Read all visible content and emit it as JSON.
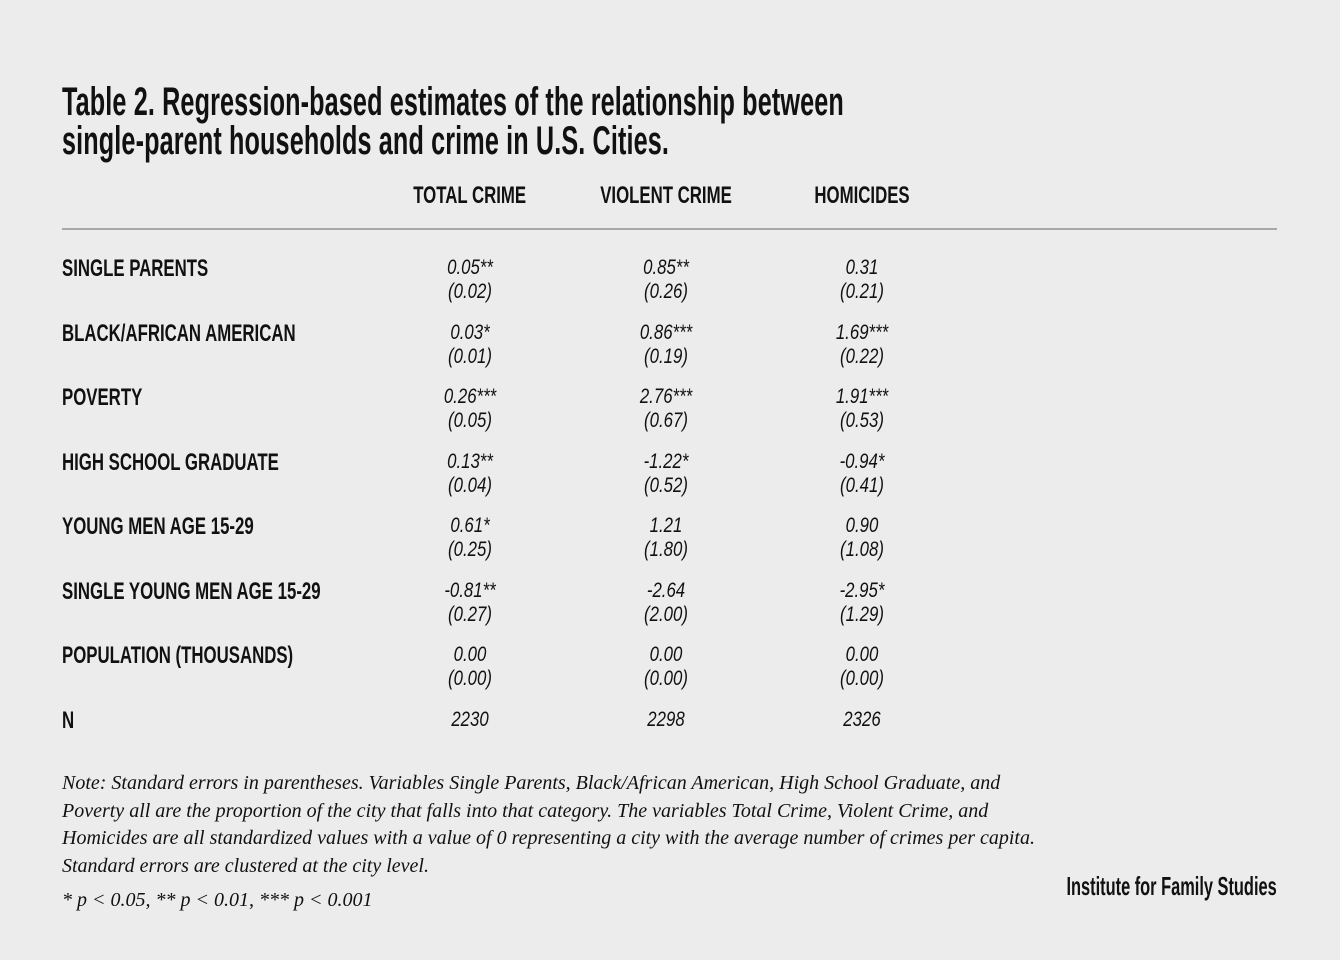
{
  "chart_data": {
    "type": "table",
    "title": "Table 2. Regression-based estimates of the relationship between single-parent households and crime in U.S. Cities.",
    "title_lines": [
      "Table 2. Regression-based estimates of the relationship between",
      "single-parent households and crime in U.S. Cities."
    ],
    "columns": [
      "TOTAL CRIME",
      "VIOLENT CRIME",
      "HOMICIDES"
    ],
    "rows": [
      {
        "label": "SINGLE PARENTS",
        "estimates": [
          "0.05**",
          "0.85**",
          "0.31"
        ],
        "standard_errors": [
          "(0.02)",
          "(0.26)",
          "(0.21)"
        ]
      },
      {
        "label": "BLACK/AFRICAN AMERICAN",
        "estimates": [
          "0.03*",
          "0.86***",
          "1.69***"
        ],
        "standard_errors": [
          "(0.01)",
          "(0.19)",
          "(0.22)"
        ]
      },
      {
        "label": "POVERTY",
        "estimates": [
          "0.26***",
          "2.76***",
          "1.91***"
        ],
        "standard_errors": [
          "(0.05)",
          "(0.67)",
          "(0.53)"
        ]
      },
      {
        "label": "HIGH SCHOOL GRADUATE",
        "estimates": [
          "0.13**",
          "-1.22*",
          "-0.94*"
        ],
        "standard_errors": [
          "(0.04)",
          "(0.52)",
          "(0.41)"
        ]
      },
      {
        "label": "YOUNG MEN AGE 15-29",
        "estimates": [
          "0.61*",
          "1.21",
          "0.90"
        ],
        "standard_errors": [
          "(0.25)",
          "(1.80)",
          "(1.08)"
        ]
      },
      {
        "label": "SINGLE YOUNG MEN AGE 15-29",
        "estimates": [
          "-0.81**",
          "-2.64",
          "-2.95*"
        ],
        "standard_errors": [
          "(0.27)",
          "(2.00)",
          "(1.29)"
        ]
      },
      {
        "label": "POPULATION (THOUSANDS)",
        "estimates": [
          "0.00",
          "0.00",
          "0.00"
        ],
        "standard_errors": [
          "(0.00)",
          "(0.00)",
          "(0.00)"
        ]
      },
      {
        "label": "N",
        "estimates": [
          "2230",
          "2298",
          "2326"
        ],
        "standard_errors": null
      }
    ],
    "note": "Note: Standard errors in parentheses. Variables Single Parents, Black/African American, High School Graduate, and Poverty all are the proportion of the city that falls into that category. The variables Total Crime, Violent Crime, and Homicides are all standardized values with a value of 0 representing a city with the average number of crimes per capita. Standard errors are clustered at the city level.",
    "significance_legend": "* p < 0.05, ** p < 0.01, *** p < 0.001",
    "source": "Institute for Family Studies"
  },
  "colors": {
    "background": "#ececec",
    "text": "#111111",
    "rule": "#a8a8a8"
  }
}
